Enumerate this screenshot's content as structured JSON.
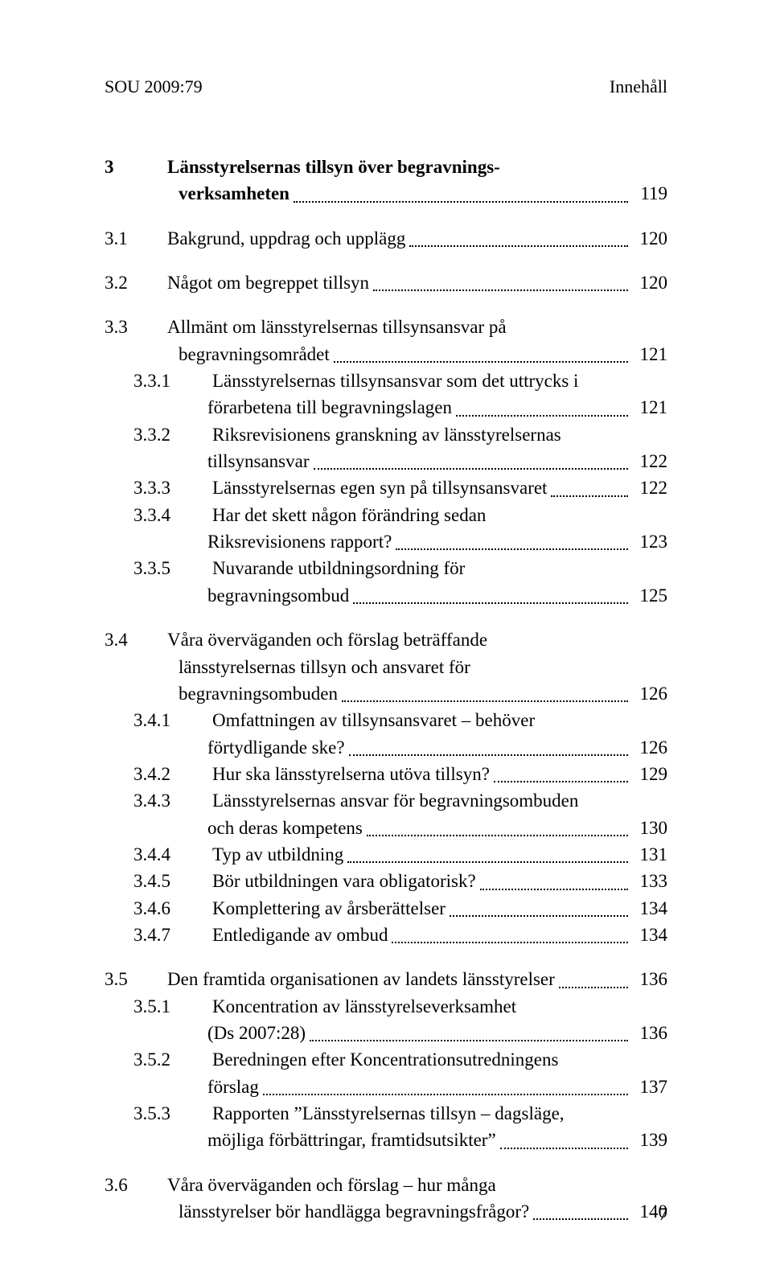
{
  "running_head": {
    "left": "SOU 2009:79",
    "right": "Innehåll"
  },
  "page_number": "7",
  "toc": {
    "sections": [
      {
        "num": "3",
        "lines": [
          "Länsstyrelsernas tillsyn över begravnings-",
          "verksamheten"
        ],
        "page": "119",
        "bold": true,
        "subs": [
          {
            "num": "3.1",
            "lines": [
              "Bakgrund, uppdrag och upplägg"
            ],
            "page": "120"
          },
          {
            "num": "3.2",
            "lines": [
              "Något om begreppet tillsyn"
            ],
            "page": "120"
          },
          {
            "num": "3.3",
            "lines": [
              "Allmänt om länsstyrelsernas tillsynsansvar på",
              "begravningsområdet"
            ],
            "page": "121",
            "subs": [
              {
                "num": "3.3.1",
                "lines": [
                  "Länsstyrelsernas tillsynsansvar som det uttrycks i",
                  "förarbetena till begravningslagen"
                ],
                "page": "121"
              },
              {
                "num": "3.3.2",
                "lines": [
                  "Riksrevisionens granskning av länsstyrelsernas",
                  "tillsynsansvar"
                ],
                "page": "122"
              },
              {
                "num": "3.3.3",
                "lines": [
                  "Länsstyrelsernas egen syn på tillsynsansvaret"
                ],
                "page": "122"
              },
              {
                "num": "3.3.4",
                "lines": [
                  "Har det skett någon förändring sedan",
                  "Riksrevisionens rapport?"
                ],
                "page": "123"
              },
              {
                "num": "3.3.5",
                "lines": [
                  "Nuvarande utbildningsordning för",
                  "begravningsombud"
                ],
                "page": "125"
              }
            ]
          },
          {
            "num": "3.4",
            "lines": [
              "Våra överväganden och förslag beträffande",
              "länsstyrelsernas tillsyn och ansvaret för",
              "begravningsombuden"
            ],
            "page": "126",
            "subs": [
              {
                "num": "3.4.1",
                "lines": [
                  "Omfattningen av tillsynsansvaret – behöver",
                  "förtydligande ske?"
                ],
                "page": "126"
              },
              {
                "num": "3.4.2",
                "lines": [
                  "Hur ska länsstyrelserna utöva tillsyn?"
                ],
                "page": "129"
              },
              {
                "num": "3.4.3",
                "lines": [
                  "Länsstyrelsernas ansvar för begravningsombuden",
                  "och deras kompetens"
                ],
                "page": "130"
              },
              {
                "num": "3.4.4",
                "lines": [
                  "Typ av utbildning"
                ],
                "page": "131"
              },
              {
                "num": "3.4.5",
                "lines": [
                  "Bör utbildningen vara obligatorisk?"
                ],
                "page": "133"
              },
              {
                "num": "3.4.6",
                "lines": [
                  "Komplettering av årsberättelser"
                ],
                "page": "134"
              },
              {
                "num": "3.4.7",
                "lines": [
                  "Entledigande av ombud"
                ],
                "page": "134"
              }
            ]
          },
          {
            "num": "3.5",
            "lines": [
              "Den framtida organisationen av landets länsstyrelser"
            ],
            "page": "136",
            "subs": [
              {
                "num": "3.5.1",
                "lines": [
                  "Koncentration av länsstyrelseverksamhet",
                  "(Ds 2007:28)"
                ],
                "page": "136"
              },
              {
                "num": "3.5.2",
                "lines": [
                  "Beredningen efter Koncentrationsutredningens",
                  "förslag"
                ],
                "page": "137"
              },
              {
                "num": "3.5.3",
                "lines": [
                  "Rapporten ”Länsstyrelsernas tillsyn – dagsläge,",
                  "möjliga förbättringar, framtidsutsikter”"
                ],
                "page": "139"
              }
            ]
          },
          {
            "num": "3.6",
            "lines": [
              "Våra överväganden och förslag – hur många",
              "länsstyrelser bör handlägga begravningsfrågor?"
            ],
            "page": "140"
          }
        ]
      }
    ]
  }
}
